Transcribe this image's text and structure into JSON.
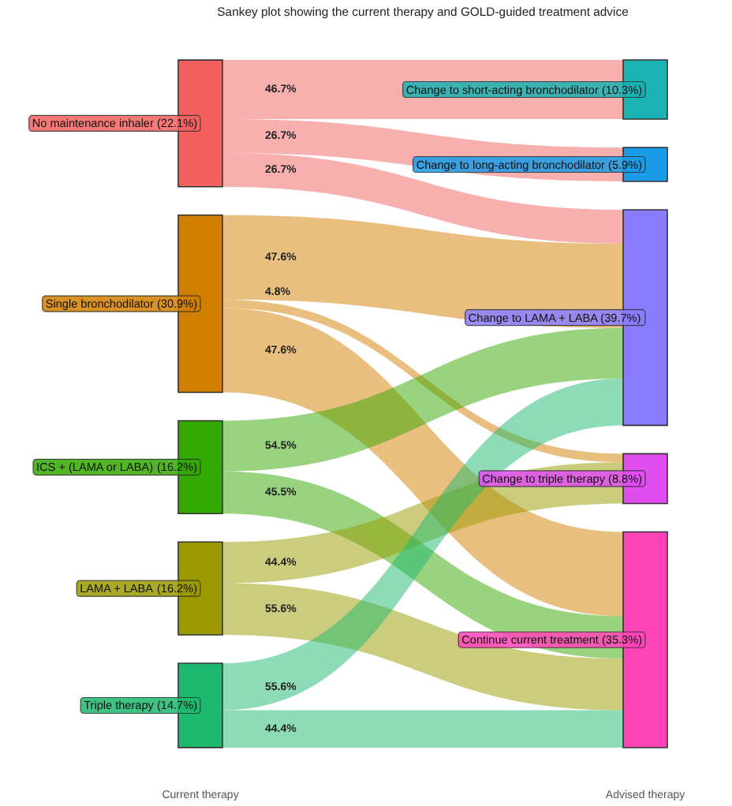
{
  "chart_data": {
    "type": "other",
    "title": "Sankey plot showing the current therapy and GOLD-guided treatment advice",
    "categories": [
      "No maintenance inhaler",
      "Single bronchodilator",
      "ICS + (LAMA or LABA)",
      "LAMA + LABA",
      "Triple therapy"
    ],
    "values": [
      22.1,
      30.9,
      16.2,
      16.2,
      14.7
    ],
    "value_labels": [
      "(22.1%)",
      "(30.9%)",
      "(16.2%)",
      "(16.2%)",
      "(14.7%)"
    ],
    "colors": [
      "#f2615f",
      "#d17f00",
      "#33a800",
      "#9a9a00",
      "#1db96f"
    ],
    "series": [
      {
        "name": "Change to short-acting bronchodilator (10.3%)",
        "color": "#1ab2b2",
        "colors": [
          "#f2615f",
          null,
          null,
          null,
          null
        ],
        "values": [
          46.7,
          null,
          null,
          null,
          null
        ],
        "value_labels": [
          "46.7%",
          null,
          null,
          null,
          null
        ]
      },
      {
        "name": "Change to long-acting bronchodilator (5.9%)",
        "color": "#1a9be8",
        "colors": [
          "#f2615f",
          null,
          null,
          null,
          null
        ],
        "values": [
          26.7,
          null,
          null,
          null,
          null
        ],
        "value_labels": [
          "26.7%",
          null,
          null,
          null,
          null
        ]
      },
      {
        "name": "Change to LAMA + LABA (39.7%)",
        "color": "#8a7cff",
        "colors": [
          "#f2615f",
          "#d17f00",
          "#33a800",
          null,
          "#1db96f"
        ],
        "values": [
          26.7,
          47.6,
          54.5,
          null,
          55.6
        ],
        "value_labels": [
          "26.7%",
          "47.6%",
          "54.5%",
          null,
          "55.6%"
        ]
      },
      {
        "name": "Change to triple therapy (8.8%)",
        "color": "#e14ef0",
        "colors": [
          null,
          "#d17f00",
          null,
          "#9a9a00",
          null
        ],
        "values": [
          null,
          4.8,
          null,
          44.4,
          null
        ],
        "value_labels": [
          null,
          "4.8%",
          null,
          "44.4%",
          null
        ]
      },
      {
        "name": "Continue current treatment (35.3%)",
        "color": "#ff44b8",
        "colors": [
          null,
          "#d17f00",
          "#33a800",
          "#9a9a00",
          "#1db96f"
        ],
        "values": [
          null,
          47.6,
          45.5,
          55.6,
          44.4
        ],
        "value_labels": [
          null,
          "47.6%",
          "45.5%",
          "55.6%",
          "44.4%"
        ]
      }
    ],
    "annotations": [
      "Current therapy",
      "Advised therapy"
    ]
  }
}
